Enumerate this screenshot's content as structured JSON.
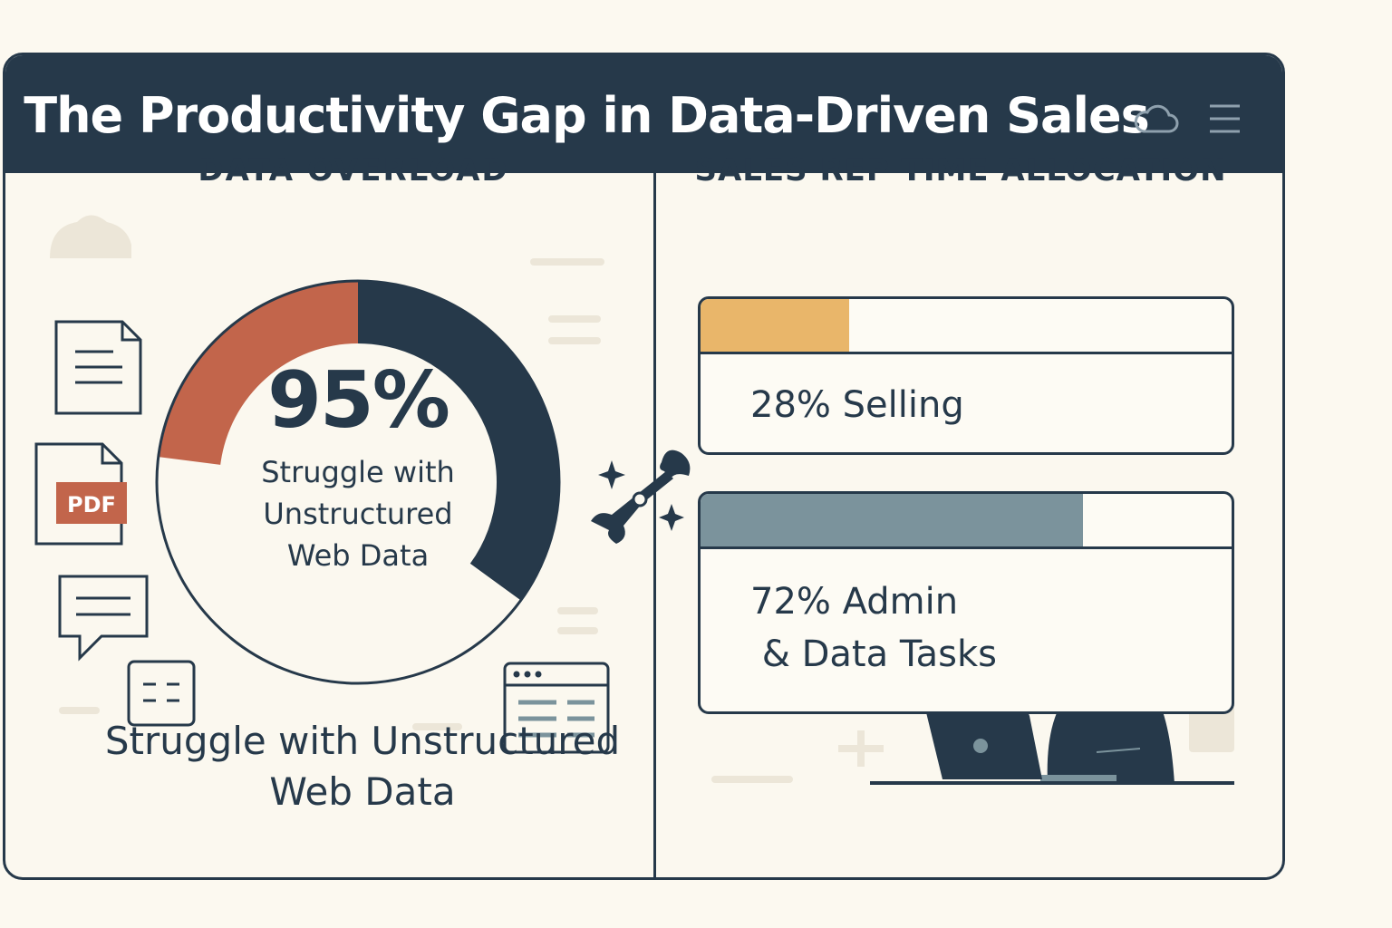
{
  "header": {
    "title": "The Productivity Gap in Data-Driven Sales"
  },
  "icons": [
    "cloud-icon",
    "menu-icon",
    "document-icon",
    "pdf-icon",
    "chat-icon",
    "grid-icon",
    "browser-table-icon",
    "tools-icon",
    "sparkle-icon",
    "person-at-laptop-icon",
    "browser-window-icon"
  ],
  "left_panel": {
    "heading": "DATA OVERLOAD",
    "pdf_label": "PDF",
    "bottom_caption": [
      "Struggle with Unstructured",
      "Web Data"
    ]
  },
  "right_panel": {
    "heading": "SALES REP TIME ALLOCATION"
  },
  "colors": {
    "navy": "#26394a",
    "terracotta": "#c2654b",
    "gold": "#e9b66a",
    "slate": "#7b939c",
    "background": "#fcf9f0"
  },
  "chart_data": [
    {
      "type": "pie",
      "title": "DATA OVERLOAD",
      "center_value": "95%",
      "center_label": [
        "Struggle with",
        "Unstructured",
        "Web Data"
      ],
      "segments": [
        {
          "value": 35,
          "color": "#26394a"
        },
        {
          "value": 42,
          "color": "#fbf8ef"
        },
        {
          "value": 23,
          "color": "#c2654b"
        }
      ]
    },
    {
      "type": "bar",
      "title": "SALES REP TIME ALLOCATION",
      "series": [
        {
          "label": "28% Selling",
          "value": 28,
          "color": "#e9b66a"
        },
        {
          "label_lines": [
            "72% Admin",
            " & Data Tasks"
          ],
          "value": 72,
          "color": "#7b939c"
        }
      ],
      "ylim": [
        0,
        100
      ]
    }
  ]
}
